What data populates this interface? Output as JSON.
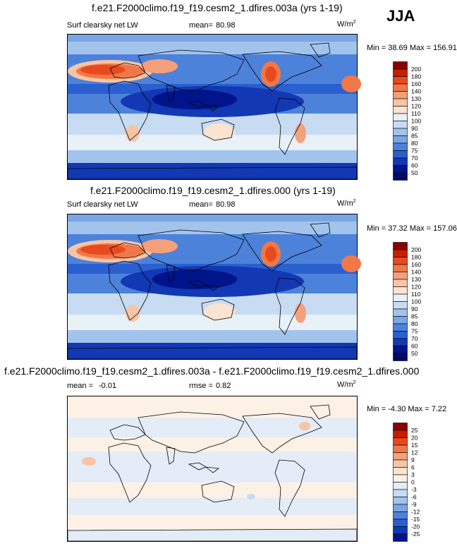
{
  "season": "JJA",
  "panels": [
    {
      "title": "f.e21.F2000climo.f19_f19.cesm2_1.dfires.003a (yrs 1-19)",
      "left_label": "Surf clearsky net LW",
      "mean_label": "mean=",
      "mean_value": "80.98",
      "rmse_label": "",
      "rmse_value": "",
      "units": "W/m",
      "units_exp": "2",
      "minmax": "Min = 38.69 Max = 156.91",
      "levels": [
        "200",
        "180",
        "160",
        "140",
        "130",
        "120",
        "110",
        "100",
        "90",
        "85",
        "80",
        "75",
        "70",
        "60",
        "50"
      ]
    },
    {
      "title": "f.e21.F2000climo.f19_f19.cesm2_1.dfires.000 (yrs 1-19)",
      "left_label": "Surf clearsky net LW",
      "mean_label": "mean=",
      "mean_value": "80.98",
      "rmse_label": "",
      "rmse_value": "",
      "units": "W/m",
      "units_exp": "2",
      "minmax": "Min = 37.32 Max = 157.06",
      "levels": [
        "200",
        "180",
        "160",
        "140",
        "130",
        "120",
        "110",
        "100",
        "90",
        "85",
        "80",
        "75",
        "70",
        "60",
        "50"
      ]
    },
    {
      "title": "f.e21.F2000climo.f19_f19.cesm2_1.dfires.003a - f.e21.F2000climo.f19_f19.cesm2_1.dfires.000",
      "left_label": "mean =",
      "mean_label": "",
      "mean_value": "-0.01",
      "rmse_label": "rmse =",
      "rmse_value": "0.82",
      "units": "W/m",
      "units_exp": "2",
      "minmax": "Min = -4.30 Max =  7.22",
      "levels": [
        "25",
        "20",
        "15",
        "12",
        "9",
        "6",
        "3",
        "0",
        "-3",
        "-6",
        "-9",
        "-12",
        "-15",
        "-20",
        "-25"
      ]
    }
  ],
  "colors": {
    "abs_scale": [
      "#8b0000",
      "#c81e00",
      "#e84a1e",
      "#f07848",
      "#f5a07a",
      "#f8c4a6",
      "#fbe3d2",
      "#e8f0f8",
      "#c7dcf2",
      "#a2c3ec",
      "#7aa6e4",
      "#4d82da",
      "#2a5fd0",
      "#1238b4",
      "#00148c",
      "#000a64"
    ],
    "diff_scale": [
      "#8b0000",
      "#c81e00",
      "#e84a1e",
      "#f07848",
      "#f5a07a",
      "#f8c4a6",
      "#fbe3d2",
      "#fdf1e6",
      "#e4ecf7",
      "#c7dcf2",
      "#a2c3ec",
      "#7aa6e4",
      "#4d82da",
      "#2a5fd0",
      "#1238b4",
      "#00148c"
    ]
  }
}
